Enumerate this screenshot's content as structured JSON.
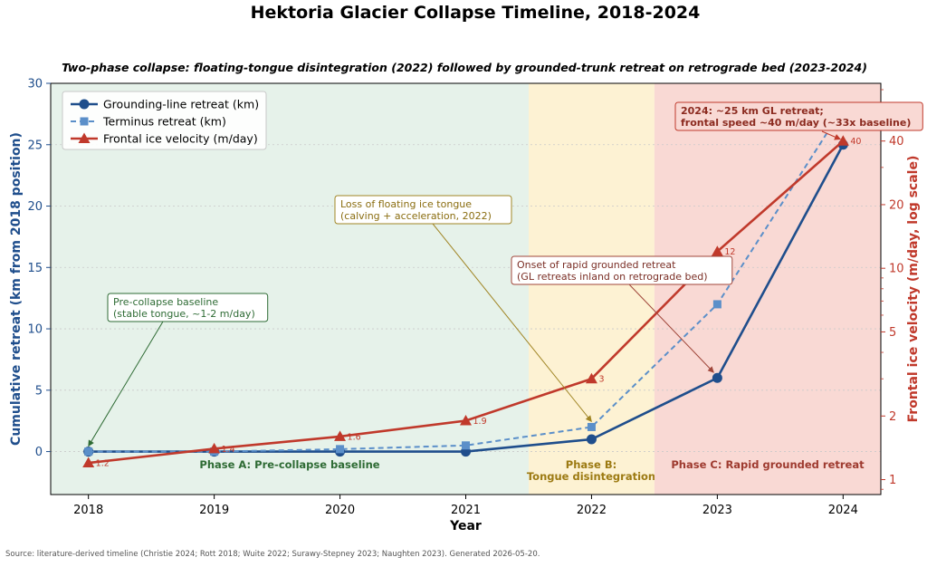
{
  "chart_data": {
    "type": "line",
    "title": "Hektoria Glacier Collapse Timeline, 2018-2024",
    "subtitle": "Two-phase collapse: floating-tongue disintegration (2022) followed by grounded-trunk retreat on retrograde bed (2023-2024)",
    "xlabel": "Year",
    "ylabel_left": "Cumulative retreat (km from 2018 position)",
    "ylabel_right": "Frontal ice velocity (m/day, log scale)",
    "x": [
      2018,
      2019,
      2020,
      2021,
      2022,
      2023,
      2024
    ],
    "x_ticks": [
      "2018",
      "2019",
      "2020",
      "2021",
      "2022",
      "2023",
      "2024"
    ],
    "xlim": [
      2017.7,
      2024.3
    ],
    "ylim_left": [
      -3.5,
      30
    ],
    "y_ticks_left": [
      "0",
      "5",
      "10",
      "15",
      "20",
      "25",
      "30"
    ],
    "right_axis_scale": "log",
    "ylim_right": [
      0.85,
      75
    ],
    "y_ticks_right": [
      "1",
      "2",
      "5",
      "10",
      "20",
      "40"
    ],
    "series": [
      {
        "name": "Grounding-line retreat (km)",
        "axis": "left",
        "style": "solid-circle",
        "color": "#1f4e8c",
        "values": [
          0,
          0,
          0,
          0,
          1,
          6,
          25
        ]
      },
      {
        "name": "Terminus retreat (km)",
        "axis": "left",
        "style": "dashed-square",
        "color": "#5b8fc9",
        "values": [
          0,
          0,
          0.2,
          0.5,
          2,
          12,
          28
        ]
      },
      {
        "name": "Frontal ice velocity (m/day)",
        "axis": "right",
        "style": "solid-triangle",
        "color": "#c0392b",
        "values": [
          1.2,
          1.4,
          1.6,
          1.9,
          3,
          12,
          40
        ],
        "data_labels": [
          "1.2",
          "1.4",
          "1.6",
          "1.9",
          "3",
          "12",
          "40"
        ]
      }
    ],
    "phases": [
      {
        "label": "Phase A: Pre-collapse baseline",
        "from": 2017.7,
        "to": 2021.5,
        "fill": "#e6f2ea",
        "text_color": "#2e6b34"
      },
      {
        "label": "Phase B:",
        "label2": "Tongue disintegration",
        "from": 2021.5,
        "to": 2022.5,
        "fill": "#fdf2d3",
        "text_color": "#9c7a12"
      },
      {
        "label": "Phase C: Rapid grounded retreat",
        "from": 2022.5,
        "to": 2024.3,
        "fill": "#f9d9d4",
        "text_color": "#9e3a2f"
      }
    ],
    "annotations": [
      {
        "lines": [
          "Pre-collapse baseline",
          "(stable tongue, ~1-2 m/day)"
        ],
        "target": [
          2018,
          0
        ],
        "color": "#2e6b34",
        "border": "#2e6b34"
      },
      {
        "lines": [
          "Loss of floating ice tongue",
          "(calving + acceleration, 2022)"
        ],
        "target": [
          2022,
          2
        ],
        "color": "#8a6d10",
        "border": "#a08524"
      },
      {
        "lines": [
          "Onset of rapid grounded retreat",
          "(GL retreats inland on retrograde bed)"
        ],
        "target": [
          2023,
          6
        ],
        "color": "#7a2e25",
        "border": "#a0463a"
      },
      {
        "lines": [
          "2024: ~25 km GL retreat;",
          "frontal speed ~40 m/day (~33x baseline)"
        ],
        "target": [
          2024,
          25
        ],
        "color": "#8b2a1f",
        "border": "#c0392b",
        "bold": true,
        "fill": "#f9d9d4"
      }
    ],
    "legend_position": "top-left",
    "grid": "horizontal-dotted"
  },
  "source": "Source: literature-derived timeline (Christie 2024; Rott 2018; Wuite 2022; Surawy-Stepney 2023; Naughten 2023). Generated 2026-05-20."
}
